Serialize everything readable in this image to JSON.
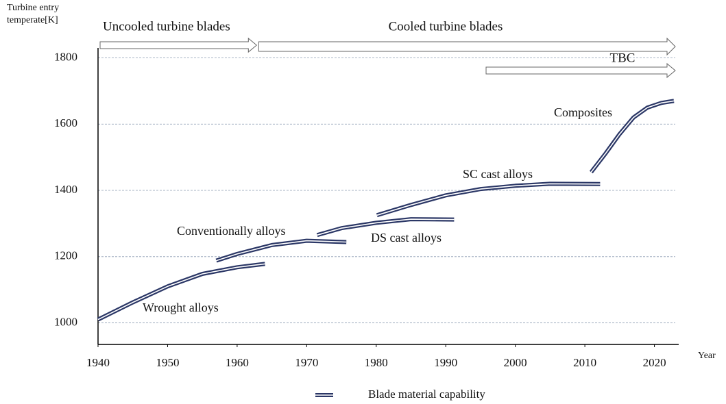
{
  "chart_data": {
    "type": "line",
    "ylabel": [
      "Turbine entry",
      "temperate[K]"
    ],
    "xlabel": "Year",
    "xlim": [
      1940,
      2023
    ],
    "ylim": [
      935,
      1830
    ],
    "xticks": [
      1940,
      1950,
      1960,
      1970,
      1980,
      1990,
      2000,
      2010,
      2020
    ],
    "yticks": [
      1000,
      1200,
      1400,
      1600,
      1800
    ],
    "grid": true,
    "color": "#2b3766",
    "legend_label": "Blade material capability",
    "periods": [
      {
        "label": "Uncooled turbine blades",
        "start": 1940,
        "end": 1962.8
      },
      {
        "label": "Cooled turbine blades",
        "start": 1962.8,
        "end": 2023
      },
      {
        "label": "TBC",
        "start": 1995.5,
        "end": 2023
      }
    ],
    "series": [
      {
        "name": "Wrought alloys",
        "x": [
          1940,
          1945,
          1950,
          1955,
          1960,
          1964
        ],
        "values": [
          1010,
          1062,
          1110,
          1148,
          1168,
          1178
        ]
      },
      {
        "name": "Conventionally alloys",
        "x": [
          1957,
          1960,
          1965,
          1970,
          1975.7
        ],
        "values": [
          1188,
          1208,
          1235,
          1248,
          1244
        ]
      },
      {
        "name": "DS cast alloys",
        "x": [
          1971.5,
          1975,
          1980,
          1985,
          1991.2
        ],
        "values": [
          1265,
          1286,
          1302,
          1313,
          1312
        ]
      },
      {
        "name": "SC cast alloys",
        "x": [
          1980.1,
          1985,
          1990,
          1995,
          2000,
          2005,
          2012.2
        ],
        "values": [
          1325,
          1356,
          1385,
          1404,
          1414,
          1420,
          1419
        ]
      },
      {
        "name": "Composites",
        "x": [
          2010.9,
          2013,
          2015,
          2017,
          2019,
          2021,
          2022.8
        ],
        "values": [
          1455,
          1512,
          1570,
          1620,
          1650,
          1664,
          1670
        ]
      }
    ]
  }
}
